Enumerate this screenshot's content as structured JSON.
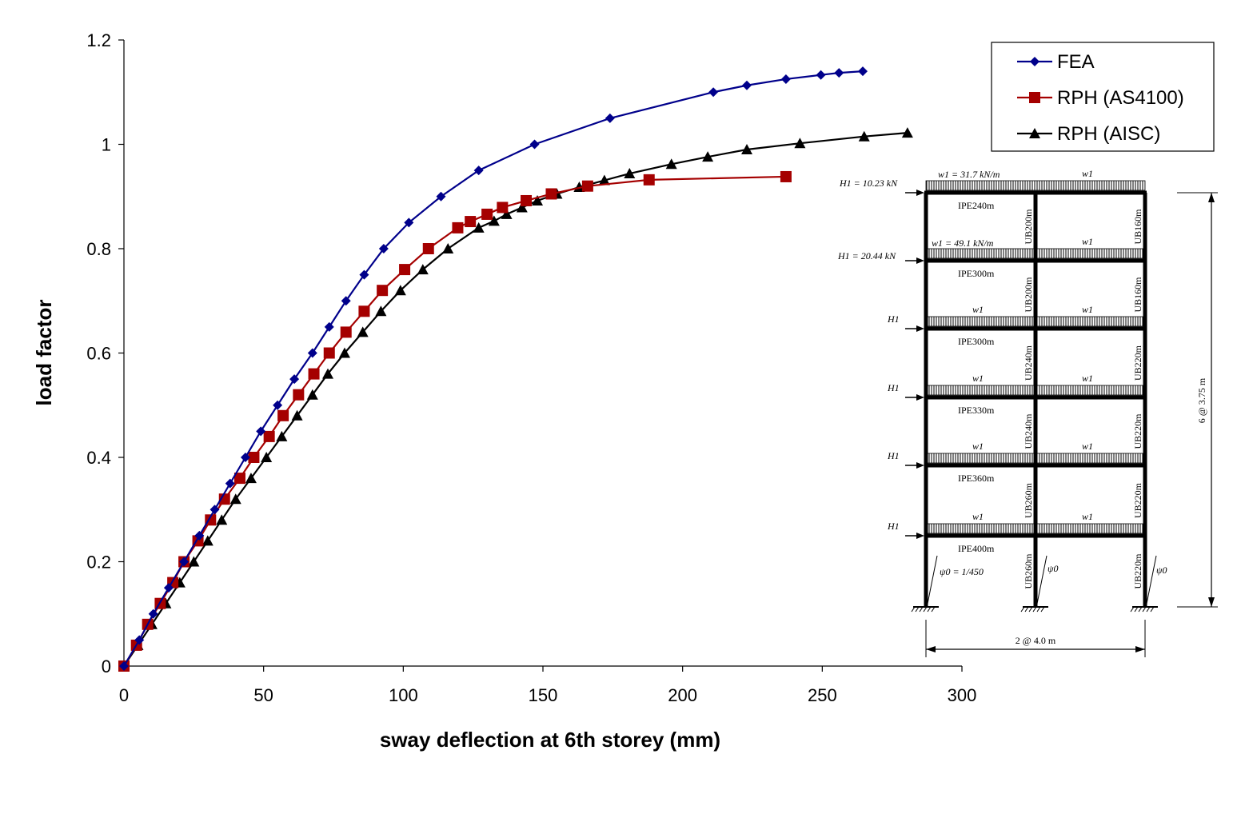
{
  "chart_data": {
    "type": "line",
    "title": "",
    "xlabel": "sway deflection at 6th storey (mm)",
    "ylabel": "load factor",
    "xlim": [
      0,
      300
    ],
    "ylim": [
      0,
      1.2
    ],
    "xticks": [
      0,
      50,
      100,
      150,
      200,
      250,
      300
    ],
    "yticks": [
      0,
      0.2,
      0.4,
      0.6,
      0.8,
      1,
      1.2
    ],
    "xtick_labels": [
      "0",
      "50",
      "100",
      "150",
      "200",
      "250",
      "300"
    ],
    "ytick_labels": [
      "0",
      "0.2",
      "0.4",
      "0.6",
      "0.8",
      "1",
      "1.2"
    ],
    "grid": false,
    "legend_position": "top-right",
    "series": [
      {
        "name": "FEA",
        "color": "#00008B",
        "marker": "diamond",
        "x": [
          0,
          5.5,
          10.5,
          16,
          21.5,
          27,
          32.5,
          38,
          43.5,
          49,
          55,
          61,
          67.5,
          73.5,
          79.5,
          86,
          93,
          102,
          113.5,
          127,
          147,
          174,
          211,
          223,
          237,
          249.5,
          256,
          264.5
        ],
        "y": [
          0,
          0.05,
          0.1,
          0.15,
          0.2,
          0.25,
          0.3,
          0.35,
          0.4,
          0.45,
          0.5,
          0.55,
          0.6,
          0.65,
          0.7,
          0.75,
          0.8,
          0.85,
          0.9,
          0.95,
          1.0,
          1.05,
          1.1,
          1.113,
          1.125,
          1.133,
          1.137,
          1.14
        ]
      },
      {
        "name": "RPH (AS4100)",
        "color": "#A50000",
        "marker": "square",
        "x": [
          0,
          4.5,
          8.5,
          13,
          17.5,
          21.5,
          26.5,
          31,
          36,
          41.5,
          46.5,
          52,
          57,
          62.5,
          68,
          73.5,
          79.5,
          86,
          92.5,
          100.5,
          109,
          119.5,
          124,
          130,
          135.5,
          144,
          153,
          166,
          188,
          237
        ],
        "y": [
          0,
          0.04,
          0.08,
          0.12,
          0.16,
          0.2,
          0.24,
          0.28,
          0.32,
          0.36,
          0.4,
          0.44,
          0.48,
          0.52,
          0.56,
          0.6,
          0.64,
          0.68,
          0.72,
          0.76,
          0.8,
          0.84,
          0.852,
          0.866,
          0.879,
          0.892,
          0.905,
          0.92,
          0.932,
          0.938
        ]
      },
      {
        "name": "RPH (AISC)",
        "color": "#000000",
        "marker": "triangle",
        "x": [
          0,
          5,
          10,
          15,
          20,
          25,
          30,
          35,
          40,
          45.5,
          51,
          56.5,
          62,
          67.5,
          73,
          79,
          85.5,
          92,
          99,
          107,
          116,
          127,
          132.5,
          137,
          142.5,
          148,
          155,
          163,
          172,
          181,
          196,
          209,
          223,
          242,
          265,
          280.5
        ],
        "y": [
          0,
          0.04,
          0.08,
          0.12,
          0.16,
          0.2,
          0.24,
          0.28,
          0.32,
          0.36,
          0.4,
          0.44,
          0.48,
          0.52,
          0.56,
          0.6,
          0.64,
          0.68,
          0.72,
          0.76,
          0.8,
          0.84,
          0.853,
          0.866,
          0.879,
          0.892,
          0.905,
          0.918,
          0.931,
          0.944,
          0.962,
          0.976,
          0.99,
          1.002,
          1.015,
          1.022
        ]
      }
    ]
  },
  "frame_diagram": {
    "top_load_label": "w1 = 31.7 kN/m",
    "w1_label": "w1",
    "floor_load_label": "w1 = 49.1 kN/m",
    "h_top_label": "H1 = 10.23 kN",
    "h_second_label": "H1 = 20.44 kN",
    "h_label": "H1",
    "beams": [
      "IPE240m",
      "IPE300m",
      "IPE300m",
      "IPE330m",
      "IPE360m",
      "IPE400m"
    ],
    "middle_columns": [
      "UB200m",
      "UB200m",
      "UB240m",
      "UB240m",
      "UB260m",
      "UB260m"
    ],
    "right_columns": [
      "UB160m",
      "UB160m",
      "UB220m",
      "UB220m",
      "UB220m",
      "UB220m"
    ],
    "imperfection_label": "ψ0 = 1/450",
    "psi_label": "ψ0",
    "height_dimension": "6 @ 3.75 m",
    "width_dimension": "2 @ 4.0 m"
  }
}
